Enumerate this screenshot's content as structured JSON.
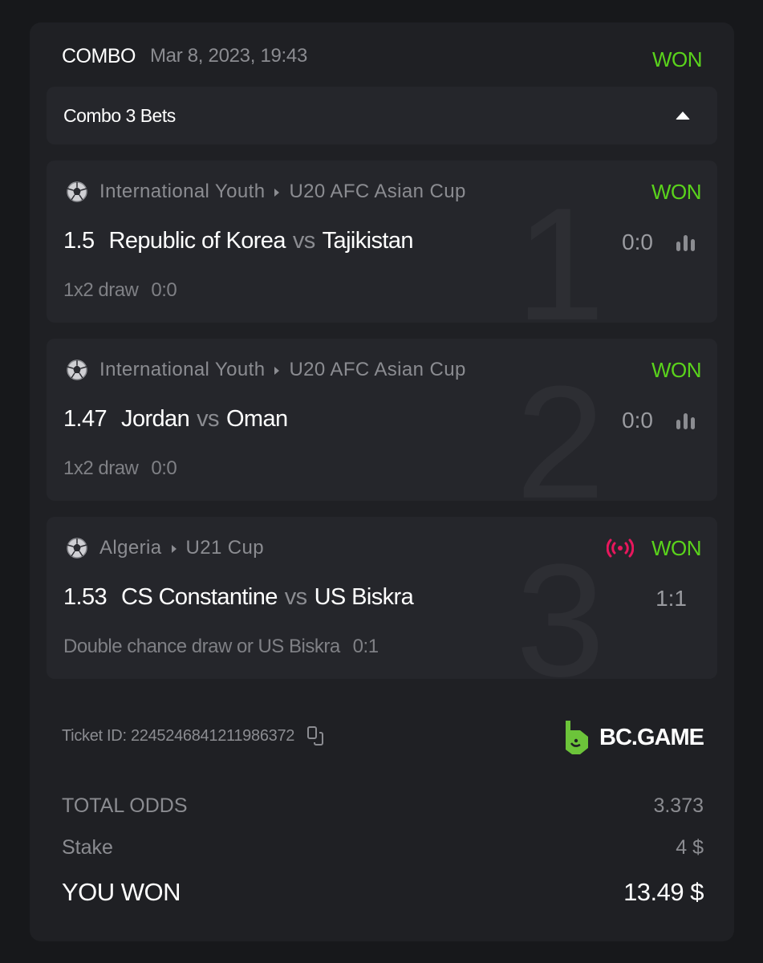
{
  "header": {
    "type": "COMBO",
    "date": "Mar 8, 2023, 19:43",
    "status": "WON"
  },
  "combo": {
    "label": "Combo 3 Bets"
  },
  "bets": [
    {
      "index": "1",
      "sport_icon": "soccer-ball-icon",
      "country": "International Youth",
      "league": "U20 AFC Asian Cup",
      "status": "WON",
      "live": false,
      "odds": "1.5",
      "home": "Republic of Korea",
      "vs": "vs",
      "away": "Tajikistan",
      "score": "0:0",
      "market": "1x2 draw",
      "market_score": "0:0",
      "stats": true
    },
    {
      "index": "2",
      "sport_icon": "soccer-ball-icon",
      "country": "International Youth",
      "league": "U20 AFC Asian Cup",
      "status": "WON",
      "live": false,
      "odds": "1.47",
      "home": "Jordan",
      "vs": "vs",
      "away": "Oman",
      "score": "0:0",
      "market": "1x2 draw",
      "market_score": "0:0",
      "stats": true
    },
    {
      "index": "3",
      "sport_icon": "soccer-ball-icon",
      "country": "Algeria",
      "league": "U21 Cup",
      "status": "WON",
      "live": true,
      "odds": "1.53",
      "home": "CS Constantine",
      "vs": "vs",
      "away": "US Biskra",
      "score": "1:1",
      "market": "Double chance draw or US Biskra",
      "market_score": "0:1",
      "stats": false
    }
  ],
  "ticket": {
    "label": "Ticket ID: 2245246841211986372"
  },
  "brand": {
    "name": "BC.GAME"
  },
  "totals": {
    "total_odds_label": "TOTAL ODDS",
    "total_odds": "3.373",
    "stake_label": "Stake",
    "stake": "4 $",
    "won_label": "YOU WON",
    "won": "13.49 $"
  },
  "colors": {
    "won": "#5ad31c",
    "live": "#e8175d",
    "brand": "#6cc43a",
    "background": "#17181b",
    "card": "#1f2024",
    "panel": "#25262b"
  }
}
